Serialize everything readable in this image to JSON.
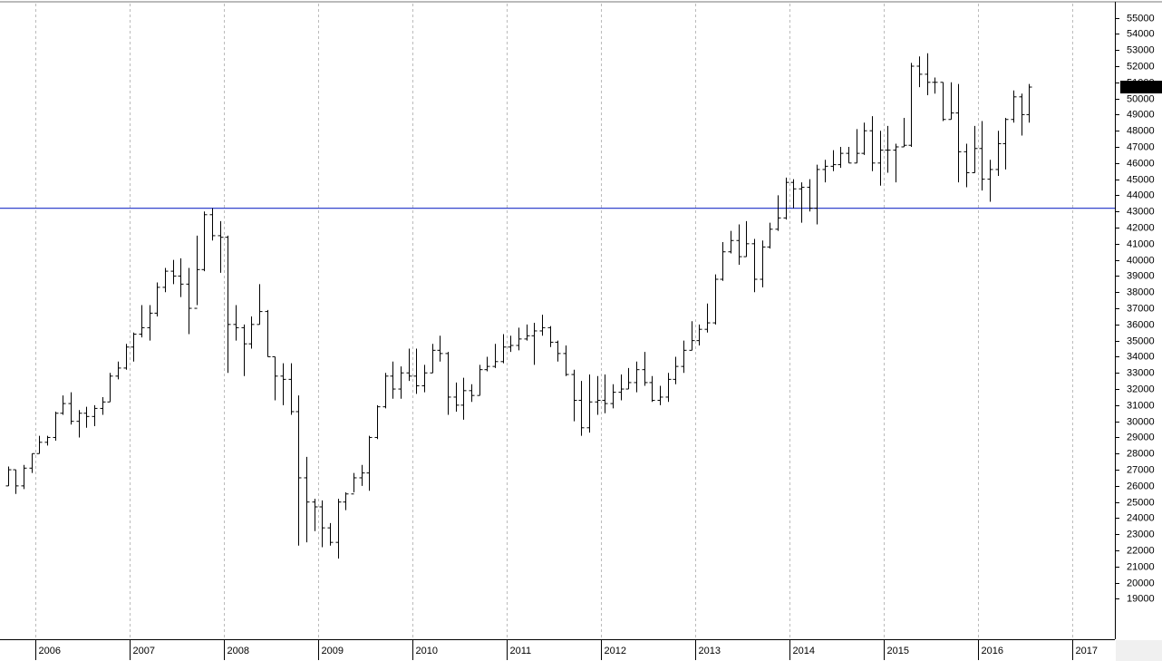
{
  "chart_data": {
    "type": "ohlc",
    "x": [
      2005.708,
      2005.792,
      2005.875,
      2005.958,
      2006.042,
      2006.125,
      2006.208,
      2006.292,
      2006.375,
      2006.458,
      2006.542,
      2006.625,
      2006.708,
      2006.792,
      2006.875,
      2006.958,
      2007.042,
      2007.125,
      2007.208,
      2007.292,
      2007.375,
      2007.458,
      2007.542,
      2007.625,
      2007.708,
      2007.792,
      2007.875,
      2007.958,
      2008.042,
      2008.125,
      2008.208,
      2008.292,
      2008.375,
      2008.458,
      2008.542,
      2008.625,
      2008.708,
      2008.792,
      2008.875,
      2008.958,
      2009.042,
      2009.125,
      2009.208,
      2009.292,
      2009.375,
      2009.458,
      2009.542,
      2009.625,
      2009.708,
      2009.792,
      2009.875,
      2009.958,
      2010.042,
      2010.125,
      2010.208,
      2010.292,
      2010.375,
      2010.458,
      2010.542,
      2010.625,
      2010.708,
      2010.792,
      2010.875,
      2010.958,
      2011.042,
      2011.125,
      2011.208,
      2011.292,
      2011.375,
      2011.458,
      2011.542,
      2011.625,
      2011.708,
      2011.792,
      2011.875,
      2011.958,
      2012.042,
      2012.125,
      2012.208,
      2012.292,
      2012.375,
      2012.458,
      2012.542,
      2012.625,
      2012.708,
      2012.792,
      2012.875,
      2012.958,
      2013.042,
      2013.125,
      2013.208,
      2013.292,
      2013.375,
      2013.458,
      2013.542,
      2013.625,
      2013.708,
      2013.792,
      2013.875,
      2013.958,
      2014.042,
      2014.125,
      2014.208,
      2014.292,
      2014.375,
      2014.458,
      2014.542,
      2014.625,
      2014.708,
      2014.792,
      2014.875,
      2014.958,
      2015.042,
      2015.125,
      2015.208,
      2015.292,
      2015.375,
      2015.458,
      2015.542,
      2015.625,
      2015.708,
      2015.792,
      2015.875,
      2015.958,
      2016.042,
      2016.125,
      2016.208,
      2016.292,
      2016.375,
      2016.458,
      2016.542
    ],
    "open": [
      26000,
      27000,
      26000,
      27100,
      28000,
      28700,
      29000,
      30500,
      31100,
      30000,
      30500,
      30300,
      30800,
      31200,
      32800,
      33300,
      34600,
      35400,
      35800,
      36700,
      38300,
      39300,
      39000,
      38500,
      37000,
      39400,
      42800,
      41500,
      41400,
      36000,
      35800,
      34800,
      36000,
      36800,
      34000,
      32800,
      32600,
      30600,
      26500,
      25000,
      24700,
      23400,
      22500,
      25000,
      25500,
      26500,
      26800,
      29000,
      30900,
      32800,
      32000,
      33000,
      32800,
      32200,
      33000,
      34400,
      34200,
      31500,
      31000,
      31900,
      31600,
      33200,
      33400,
      33700,
      34600,
      34700,
      35100,
      35300,
      35600,
      35800,
      34900,
      34200,
      32900,
      31300,
      29600,
      31200,
      31300,
      31100,
      31800,
      32000,
      32400,
      33200,
      32400,
      31300,
      31500,
      32600,
      33400,
      34400,
      35000,
      35700,
      36100,
      38800,
      40500,
      41200,
      40200,
      41000,
      38800,
      40800,
      41900,
      42600,
      44800,
      44400,
      44500,
      43200,
      45600,
      45800,
      45900,
      46600,
      46000,
      46600,
      48000,
      46000,
      46800,
      46800,
      47000,
      47100,
      52000,
      51500,
      51000,
      51000,
      48700,
      49100,
      46700,
      45400,
      46900,
      45000,
      45600,
      47200,
      48700,
      50100,
      49000
    ],
    "high": [
      27200,
      27000,
      27300,
      28000,
      29100,
      29100,
      30600,
      31600,
      31800,
      30700,
      30900,
      31000,
      31500,
      33000,
      33700,
      34800,
      35500,
      37200,
      37200,
      38600,
      39500,
      40000,
      40100,
      39500,
      41500,
      43000,
      43200,
      42400,
      41500,
      37200,
      36000,
      36500,
      38500,
      36900,
      34000,
      33600,
      33600,
      31600,
      27800,
      25200,
      25100,
      23700,
      25200,
      25600,
      26800,
      27300,
      29100,
      31000,
      33000,
      33700,
      33400,
      34500,
      34500,
      33500,
      34800,
      35300,
      34300,
      32400,
      32700,
      32300,
      33500,
      34000,
      34800,
      35400,
      35300,
      35800,
      36000,
      36100,
      36600,
      35900,
      35000,
      34700,
      33200,
      32500,
      32900,
      32800,
      32900,
      32300,
      32900,
      33300,
      33700,
      34300,
      32800,
      32200,
      33000,
      34000,
      35000,
      36200,
      36000,
      37300,
      39100,
      41100,
      41800,
      42200,
      42400,
      41300,
      41200,
      42300,
      44000,
      45100,
      45000,
      44800,
      45000,
      45900,
      46200,
      46800,
      47000,
      47000,
      48100,
      48500,
      48900,
      48000,
      48300,
      47200,
      48800,
      52200,
      52600,
      52800,
      51300,
      51000,
      51000,
      50900,
      47200,
      48300,
      48600,
      46200,
      48000,
      48800,
      50500,
      50300,
      50900
    ],
    "low": [
      26000,
      25500,
      25800,
      26800,
      28000,
      28500,
      28800,
      30400,
      29800,
      29000,
      29600,
      29700,
      30400,
      31200,
      32600,
      33200,
      33700,
      35200,
      35000,
      36500,
      38000,
      38500,
      37700,
      35400,
      37200,
      39300,
      41200,
      39200,
      33000,
      35000,
      32800,
      34500,
      36000,
      34000,
      31300,
      31000,
      30400,
      22300,
      22500,
      23200,
      22200,
      22300,
      21500,
      24500,
      25600,
      26000,
      25700,
      28900,
      30800,
      31400,
      31400,
      32500,
      31700,
      31800,
      33000,
      33700,
      30400,
      30600,
      30100,
      31200,
      31600,
      33100,
      33300,
      33600,
      34300,
      34400,
      35000,
      33500,
      35300,
      34600,
      33700,
      32800,
      30000,
      29100,
      29300,
      30400,
      30500,
      30800,
      31300,
      32000,
      31800,
      32200,
      31200,
      31000,
      31200,
      32300,
      33000,
      34400,
      34700,
      35500,
      36000,
      38700,
      40400,
      39700,
      40200,
      38000,
      38300,
      40700,
      41800,
      42500,
      43200,
      42300,
      43000,
      42200,
      44800,
      45500,
      45700,
      46000,
      46000,
      46500,
      45500,
      44600,
      45400,
      44800,
      47000,
      47000,
      50700,
      50200,
      50300,
      48600,
      48700,
      44800,
      44500,
      45400,
      44300,
      43600,
      45200,
      45600,
      48500,
      47700,
      48500
    ],
    "close": [
      27000,
      26000,
      27100,
      28000,
      28700,
      29000,
      30500,
      31100,
      30000,
      30500,
      30300,
      30800,
      31200,
      32800,
      33300,
      34600,
      35400,
      35800,
      36700,
      38300,
      39300,
      39000,
      38500,
      37000,
      39400,
      42800,
      41500,
      41400,
      36000,
      35800,
      34800,
      36000,
      36800,
      34000,
      32800,
      32600,
      30600,
      26500,
      25000,
      24700,
      23400,
      22500,
      25000,
      25500,
      26500,
      26800,
      29000,
      30900,
      32800,
      32000,
      33000,
      32800,
      32200,
      33000,
      34400,
      34200,
      31500,
      31000,
      31900,
      31600,
      33200,
      33400,
      33700,
      34600,
      34700,
      35100,
      35300,
      35600,
      35800,
      34900,
      34200,
      32900,
      31300,
      29600,
      31200,
      31300,
      31100,
      31800,
      32000,
      32400,
      33200,
      32400,
      31300,
      31500,
      32600,
      33400,
      34400,
      35000,
      35700,
      36100,
      38800,
      40500,
      41200,
      40200,
      41000,
      38800,
      40800,
      41900,
      42600,
      44800,
      44400,
      44500,
      43200,
      45600,
      45800,
      45900,
      46600,
      46000,
      46600,
      48000,
      46000,
      46800,
      46800,
      47000,
      47100,
      52000,
      51500,
      51000,
      51000,
      48700,
      49100,
      46700,
      45400,
      46900,
      45000,
      45600,
      47200,
      48700,
      50100,
      49000,
      50705.87
    ],
    "color": "#000000",
    "hline": {
      "value": 43200,
      "color": "#3344cc"
    },
    "last_price_color": "#00ff00",
    "xlim": [
      2005.625,
      2017.452
    ],
    "xticks": [
      2006,
      2007,
      2008,
      2009,
      2010,
      2011,
      2012,
      2013,
      2014,
      2015,
      2016,
      2017
    ],
    "ylim": [
      16500,
      56100
    ],
    "yticks": [
      19000,
      20000,
      21000,
      22000,
      23000,
      24000,
      25000,
      26000,
      27000,
      28000,
      29000,
      30000,
      31000,
      32000,
      33000,
      34000,
      35000,
      36000,
      37000,
      38000,
      39000,
      40000,
      41000,
      42000,
      43000,
      44000,
      45000,
      46000,
      47000,
      48000,
      49000,
      50000,
      51000,
      52000,
      53000,
      54000,
      55000
    ],
    "grid": "x"
  }
}
